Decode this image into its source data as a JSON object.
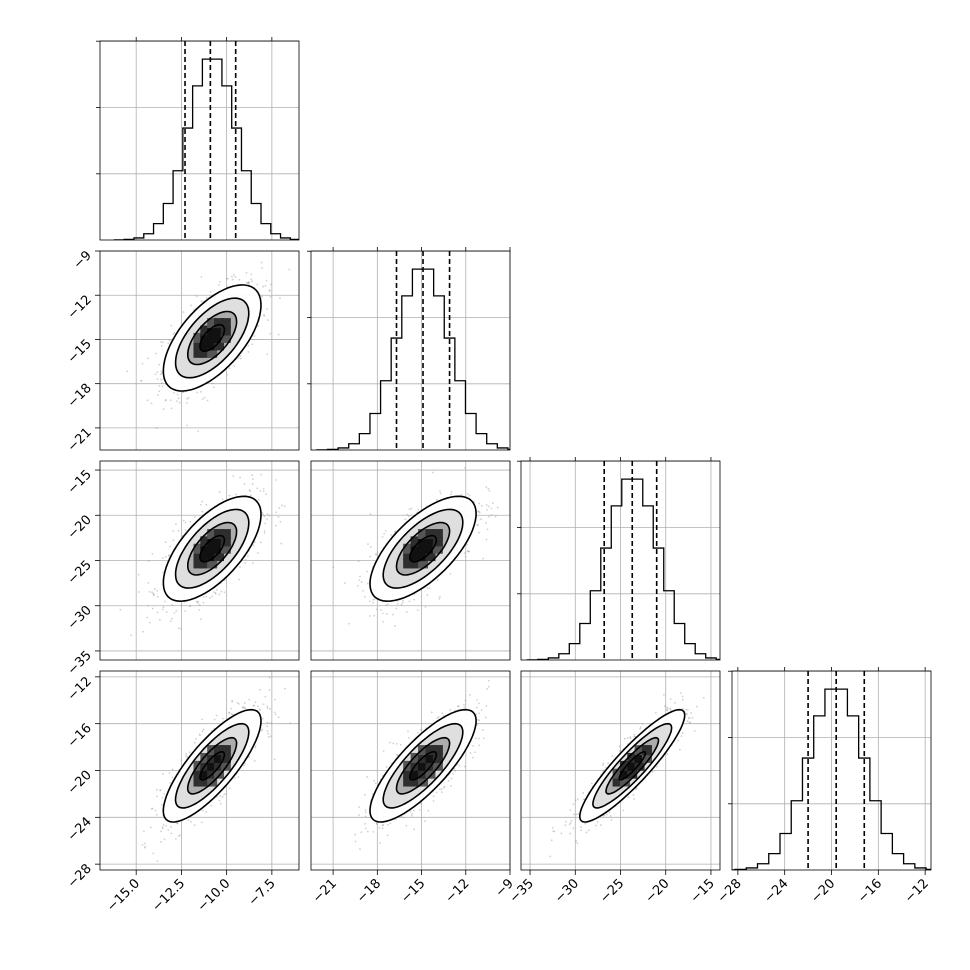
{
  "chart_data": {
    "type": "corner",
    "title": "",
    "n_params": 4,
    "params": [
      {
        "mean": -10.8,
        "std": 1.35,
        "q16": -12.3,
        "q50": -10.9,
        "q84": -9.5,
        "lim": [
          -17.0,
          -6.0
        ],
        "ticks": [
          -15.0,
          -12.5,
          -10.0,
          -7.5
        ],
        "tick_labels": [
          "−15.0",
          "−12.5",
          "−10.0",
          "−7.5"
        ]
      },
      {
        "mean": -14.9,
        "std": 1.8,
        "q16": -16.7,
        "q50": -14.9,
        "q84": -13.1,
        "lim": [
          -22.5,
          -9.0
        ],
        "ticks": [
          -21,
          -18,
          -15,
          -12,
          -9
        ],
        "tick_labels": [
          "−21",
          "−18",
          "−15",
          "−12",
          "−9"
        ]
      },
      {
        "mean": -23.7,
        "std": 2.9,
        "q16": -26.8,
        "q50": -23.7,
        "q84": -21.0,
        "lim": [
          -36.0,
          -14.0
        ],
        "ticks": [
          -35,
          -30,
          -25,
          -20,
          -15
        ],
        "tick_labels": [
          "−35",
          "−30",
          "−25",
          "−20",
          "−15"
        ]
      },
      {
        "mean": -19.6,
        "std": 2.4,
        "q16": -22.0,
        "q50": -19.6,
        "q84": -17.2,
        "lim": [
          -28.5,
          -11.5
        ],
        "ticks": [
          -28,
          -24,
          -20,
          -16,
          -12
        ],
        "tick_labels": [
          "−28",
          "−24",
          "−20",
          "−16",
          "−12"
        ]
      }
    ],
    "pairs": [
      {
        "row": 1,
        "col": 0,
        "corr": 0.62
      },
      {
        "row": 2,
        "col": 0,
        "corr": 0.65
      },
      {
        "row": 2,
        "col": 1,
        "corr": 0.67
      },
      {
        "row": 3,
        "col": 0,
        "corr": 0.8
      },
      {
        "row": 3,
        "col": 1,
        "corr": 0.8
      },
      {
        "row": 3,
        "col": 2,
        "corr": 0.9
      }
    ],
    "histogram_bins": 20,
    "contour_levels_sigma": [
      0.5,
      1.0,
      1.5,
      2.0
    ],
    "grid": true,
    "quantile_lines": "dashed"
  }
}
